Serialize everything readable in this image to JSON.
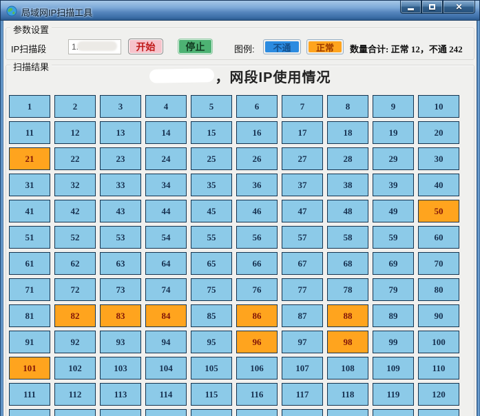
{
  "window": {
    "title": "局域网IP扫描工具"
  },
  "params": {
    "group_label": "参数设置",
    "ip_field_label": "IP扫描段",
    "ip_field_value": "1.",
    "start_button": "开始",
    "stop_button": "停止",
    "legend_label": "图例:",
    "legend_unreachable": "不通",
    "legend_normal": "正常",
    "summary": "数量合计: 正常 12，不通 242"
  },
  "results": {
    "group_label": "扫描结果",
    "title_visible_text": "，网段IP使用情况"
  },
  "grid": {
    "cells": [
      1,
      2,
      3,
      4,
      5,
      6,
      7,
      8,
      9,
      10,
      11,
      12,
      13,
      14,
      15,
      16,
      17,
      18,
      19,
      20,
      21,
      22,
      23,
      24,
      25,
      26,
      27,
      28,
      29,
      30,
      31,
      32,
      33,
      34,
      35,
      36,
      37,
      38,
      39,
      40,
      41,
      42,
      43,
      44,
      45,
      46,
      47,
      48,
      49,
      50,
      51,
      52,
      53,
      54,
      55,
      56,
      57,
      58,
      59,
      60,
      61,
      62,
      63,
      64,
      65,
      66,
      67,
      68,
      69,
      70,
      71,
      72,
      73,
      74,
      75,
      76,
      77,
      78,
      79,
      80,
      81,
      82,
      83,
      84,
      85,
      86,
      87,
      88,
      89,
      90,
      91,
      92,
      93,
      94,
      95,
      96,
      97,
      98,
      99,
      100,
      101,
      102,
      103,
      104,
      105,
      106,
      107,
      108,
      109,
      110,
      111,
      112,
      113,
      114,
      115,
      116,
      117,
      118,
      119,
      120
    ],
    "normal_cells": [
      21,
      50,
      82,
      83,
      84,
      86,
      88,
      96,
      98,
      101
    ],
    "partial_next_row_cells": 10
  },
  "colors": {
    "cell_unreachable": "#8CCAE8",
    "cell_normal": "#FFA41E",
    "cell_border": "#14334F",
    "legend_unreachable_bg": "#2B8BE0",
    "legend_normal_bg": "#FFA41E",
    "start_button_bg": "#F6C3CB",
    "stop_button_bg": "#4DB273",
    "titlebar_blue": "#5585BD"
  }
}
